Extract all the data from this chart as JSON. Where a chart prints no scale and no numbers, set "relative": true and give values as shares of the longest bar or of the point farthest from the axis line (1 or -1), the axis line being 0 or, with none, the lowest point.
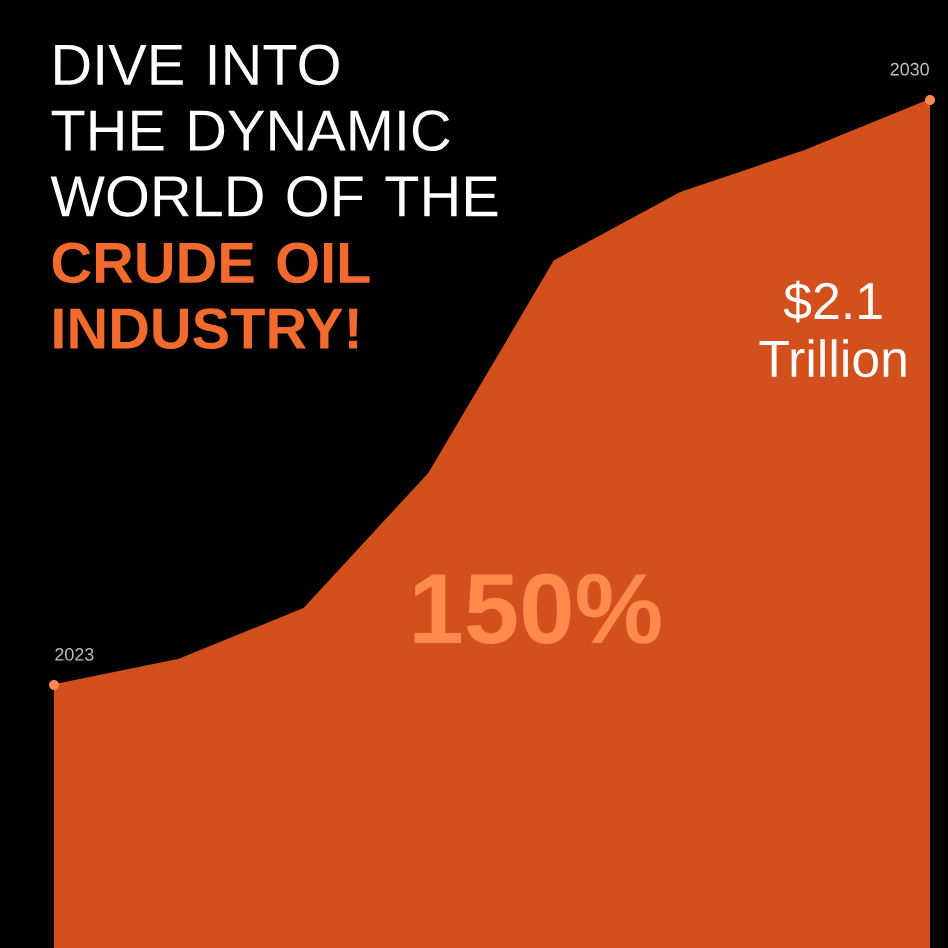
{
  "chart_data": {
    "type": "area",
    "title": "DIVE INTO THE DYNAMIC WORLD OF THE",
    "subtitle": "CRUDE OIL INDUSTRY!",
    "relative": true,
    "categories": [
      null,
      null,
      null,
      null,
      null,
      null,
      null,
      null
    ],
    "series": [
      {
        "color": "#d2501d",
        "values": [
          0.31,
          0.34,
          0.4,
          0.56,
          0.81,
          0.89,
          0.94,
          1
        ]
      }
    ],
    "annotations": [
      "2023",
      "2030",
      "$2.1 Trillion",
      "150%"
    ]
  }
}
